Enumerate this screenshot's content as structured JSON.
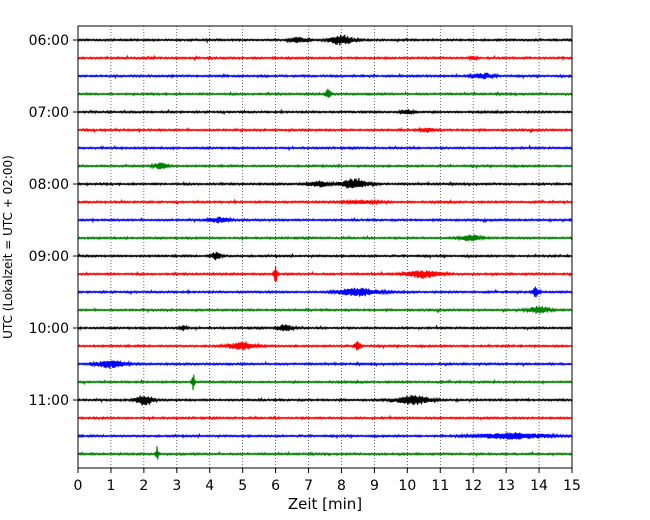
{
  "chart_data": {
    "type": "line",
    "xlabel": "Zeit  [min]",
    "ylabel": "UTC (Lokalzeit = UTC + 02:00)",
    "xlim": [
      0,
      15
    ],
    "x_ticks": [
      0,
      1,
      2,
      3,
      4,
      5,
      6,
      7,
      8,
      9,
      10,
      11,
      12,
      13,
      14,
      15
    ],
    "y_tick_labels": [
      "06:00",
      "07:00",
      "08:00",
      "09:00",
      "10:00",
      "11:00"
    ],
    "y_tick_trace_index": [
      0,
      4,
      8,
      12,
      16,
      20
    ],
    "grid_x": true,
    "grid_style": "dotted",
    "trace_colors": [
      "#000000",
      "#ff0000",
      "#0000ff",
      "#008000"
    ],
    "trace_start_times": [
      "06:00",
      "06:15",
      "06:30",
      "06:45",
      "07:00",
      "07:15",
      "07:30",
      "07:45",
      "08:00",
      "08:15",
      "08:30",
      "08:45",
      "09:00",
      "09:15",
      "09:30",
      "09:45",
      "10:00",
      "10:15",
      "10:30",
      "10:45",
      "11:00",
      "11:15",
      "11:30",
      "11:45"
    ],
    "trace_minutes": 15,
    "events": [
      {
        "trace": 0,
        "minute": 8.0,
        "amplitude": 0.55,
        "width": 0.35
      },
      {
        "trace": 0,
        "minute": 6.7,
        "amplitude": 0.3,
        "width": 0.25
      },
      {
        "trace": 1,
        "minute": 12.0,
        "amplitude": 0.25,
        "width": 0.1
      },
      {
        "trace": 2,
        "minute": 12.3,
        "amplitude": 0.3,
        "width": 0.3
      },
      {
        "trace": 3,
        "minute": 7.6,
        "amplitude": 0.5,
        "width": 0.08
      },
      {
        "trace": 4,
        "minute": 10.0,
        "amplitude": 0.25,
        "width": 0.2
      },
      {
        "trace": 5,
        "minute": 10.6,
        "amplitude": 0.25,
        "width": 0.2
      },
      {
        "trace": 7,
        "minute": 2.5,
        "amplitude": 0.35,
        "width": 0.2
      },
      {
        "trace": 8,
        "minute": 8.4,
        "amplitude": 0.6,
        "width": 0.4
      },
      {
        "trace": 8,
        "minute": 7.3,
        "amplitude": 0.3,
        "width": 0.3
      },
      {
        "trace": 9,
        "minute": 8.6,
        "amplitude": 0.2,
        "width": 0.5
      },
      {
        "trace": 10,
        "minute": 4.3,
        "amplitude": 0.3,
        "width": 0.3
      },
      {
        "trace": 11,
        "minute": 11.9,
        "amplitude": 0.35,
        "width": 0.3
      },
      {
        "trace": 12,
        "minute": 4.2,
        "amplitude": 0.45,
        "width": 0.15
      },
      {
        "trace": 13,
        "minute": 6.0,
        "amplitude": 0.9,
        "width": 0.05
      },
      {
        "trace": 13,
        "minute": 10.5,
        "amplitude": 0.4,
        "width": 0.5
      },
      {
        "trace": 14,
        "minute": 8.5,
        "amplitude": 0.45,
        "width": 0.6
      },
      {
        "trace": 14,
        "minute": 13.9,
        "amplitude": 0.7,
        "width": 0.08
      },
      {
        "trace": 15,
        "minute": 14.0,
        "amplitude": 0.4,
        "width": 0.3
      },
      {
        "trace": 16,
        "minute": 6.3,
        "amplitude": 0.4,
        "width": 0.2
      },
      {
        "trace": 16,
        "minute": 3.2,
        "amplitude": 0.35,
        "width": 0.1
      },
      {
        "trace": 17,
        "minute": 5.0,
        "amplitude": 0.4,
        "width": 0.4
      },
      {
        "trace": 17,
        "minute": 8.5,
        "amplitude": 0.5,
        "width": 0.1
      },
      {
        "trace": 18,
        "minute": 1.0,
        "amplitude": 0.45,
        "width": 0.4
      },
      {
        "trace": 19,
        "minute": 3.5,
        "amplitude": 0.9,
        "width": 0.04
      },
      {
        "trace": 20,
        "minute": 2.0,
        "amplitude": 0.6,
        "width": 0.25
      },
      {
        "trace": 20,
        "minute": 10.2,
        "amplitude": 0.5,
        "width": 0.5
      },
      {
        "trace": 22,
        "minute": 13.2,
        "amplitude": 0.35,
        "width": 1.0
      },
      {
        "trace": 23,
        "minute": 2.4,
        "amplitude": 0.9,
        "width": 0.04
      }
    ]
  }
}
